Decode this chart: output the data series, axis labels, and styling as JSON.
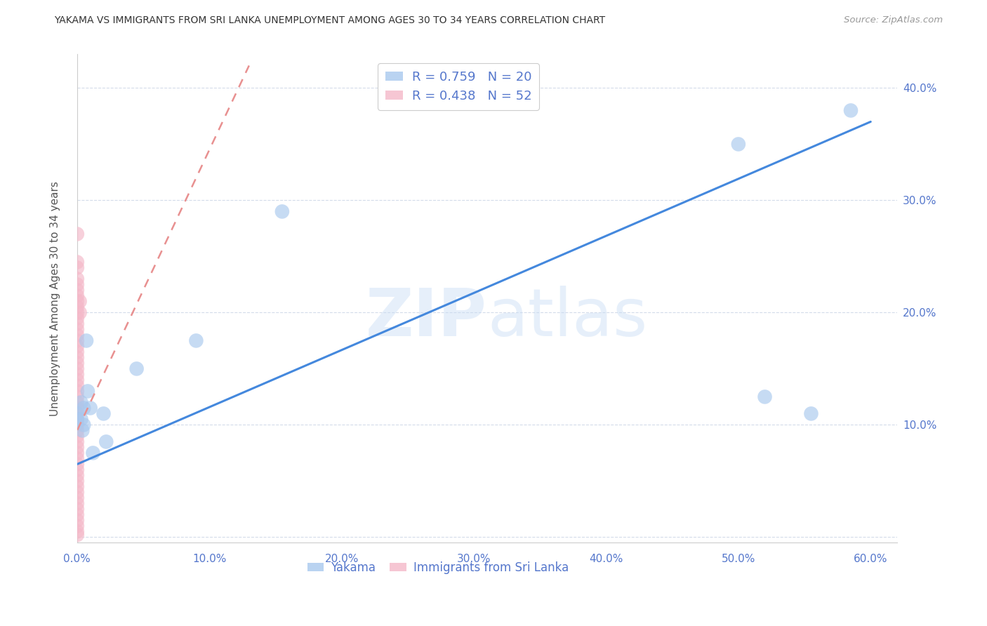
{
  "title": "YAKAMA VS IMMIGRANTS FROM SRI LANKA UNEMPLOYMENT AMONG AGES 30 TO 34 YEARS CORRELATION CHART",
  "source": "Source: ZipAtlas.com",
  "ylabel": "Unemployment Among Ages 30 to 34 years",
  "watermark": "ZIPatlas",
  "xlim": [
    0.0,
    0.62
  ],
  "ylim": [
    -0.005,
    0.43
  ],
  "xticks": [
    0.0,
    0.1,
    0.2,
    0.3,
    0.4,
    0.5,
    0.6
  ],
  "yticks": [
    0.0,
    0.1,
    0.2,
    0.3,
    0.4
  ],
  "xtick_labels": [
    "0.0%",
    "10.0%",
    "20.0%",
    "30.0%",
    "40.0%",
    "50.0%",
    "60.0%"
  ],
  "ytick_labels": [
    "",
    "10.0%",
    "20.0%",
    "30.0%",
    "40.0%"
  ],
  "yakama_color": "#a8c8ee",
  "srilanka_color": "#f4b8c8",
  "line_blue_color": "#4488dd",
  "line_pink_color": "#e89090",
  "legend_R1": "R = 0.759",
  "legend_N1": "N = 20",
  "legend_R2": "R = 0.438",
  "legend_N2": "N = 52",
  "yakama_x": [
    0.0,
    0.0,
    0.003,
    0.003,
    0.004,
    0.005,
    0.005,
    0.007,
    0.008,
    0.01,
    0.012,
    0.02,
    0.022,
    0.045,
    0.09,
    0.155,
    0.5,
    0.52,
    0.555,
    0.585
  ],
  "yakama_y": [
    0.11,
    0.105,
    0.12,
    0.105,
    0.095,
    0.115,
    0.1,
    0.175,
    0.13,
    0.115,
    0.075,
    0.11,
    0.085,
    0.15,
    0.175,
    0.29,
    0.35,
    0.125,
    0.11,
    0.38
  ],
  "srilanka_x": [
    0.0,
    0.0,
    0.0,
    0.0,
    0.0,
    0.0,
    0.0,
    0.0,
    0.0,
    0.0,
    0.0,
    0.0,
    0.0,
    0.0,
    0.0,
    0.0,
    0.0,
    0.0,
    0.0,
    0.0,
    0.0,
    0.0,
    0.0,
    0.0,
    0.0,
    0.0,
    0.0,
    0.0,
    0.0,
    0.0,
    0.0,
    0.0,
    0.0,
    0.0,
    0.0,
    0.0,
    0.0,
    0.0,
    0.0,
    0.0,
    0.0,
    0.0,
    0.0,
    0.0,
    0.0,
    0.0,
    0.0,
    0.0,
    0.0,
    0.0,
    0.002,
    0.002
  ],
  "srilanka_y": [
    0.27,
    0.245,
    0.24,
    0.23,
    0.225,
    0.22,
    0.215,
    0.21,
    0.205,
    0.2,
    0.195,
    0.19,
    0.185,
    0.18,
    0.175,
    0.17,
    0.165,
    0.16,
    0.155,
    0.15,
    0.145,
    0.14,
    0.135,
    0.13,
    0.125,
    0.12,
    0.115,
    0.11,
    0.105,
    0.1,
    0.095,
    0.09,
    0.085,
    0.08,
    0.075,
    0.07,
    0.065,
    0.06,
    0.055,
    0.05,
    0.045,
    0.04,
    0.035,
    0.03,
    0.025,
    0.02,
    0.015,
    0.01,
    0.005,
    0.002,
    0.21,
    0.2
  ],
  "blue_line_x": [
    0.0,
    0.6
  ],
  "blue_line_y": [
    0.065,
    0.37
  ],
  "pink_line_x": [
    -0.01,
    0.13
  ],
  "pink_line_y": [
    0.07,
    0.42
  ],
  "tick_color": "#5577cc",
  "tick_fontsize": 11,
  "title_fontsize": 10
}
